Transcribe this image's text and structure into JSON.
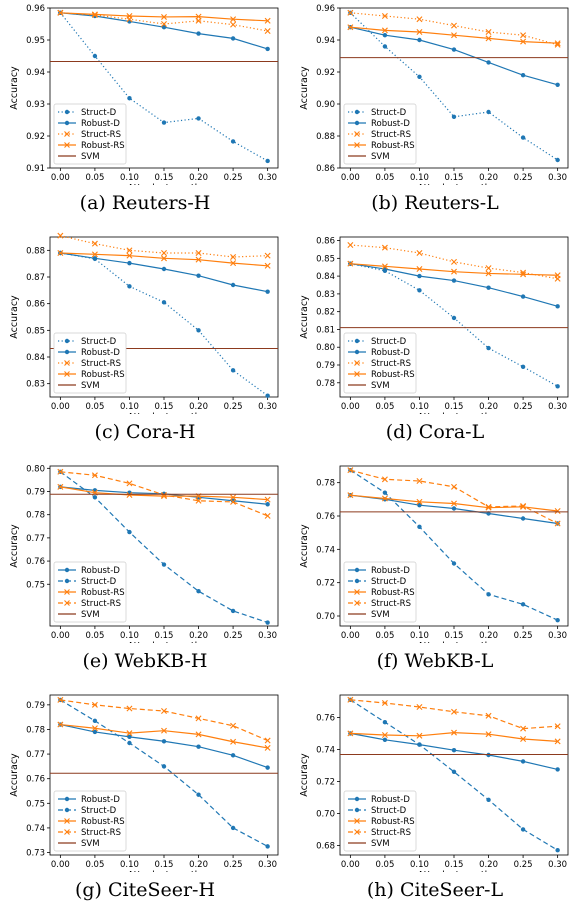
{
  "colors": {
    "blue": "#1f77b4",
    "orange": "#ff7f0e",
    "svm": "#8c3a1e"
  },
  "charts": [
    {
      "type": "line",
      "caption": "(a) Reuters-H",
      "xlabel": "Attack strength",
      "ylabel": "Accuracy",
      "x": [
        0.0,
        0.05,
        0.1,
        0.15,
        0.2,
        0.25,
        0.3
      ],
      "xticks": [
        "0.00",
        "0.05",
        "0.10",
        "0.15",
        "0.20",
        "0.25",
        "0.30"
      ],
      "ylim": [
        0.91,
        0.96
      ],
      "yticks": [
        0.91,
        0.92,
        0.93,
        0.94,
        0.95,
        0.96
      ],
      "ytick_labels": [
        "0.91",
        "0.92",
        "0.93",
        "0.94",
        "0.95",
        "0.96"
      ],
      "legend": "bottom-left",
      "series": [
        {
          "name": "Struct-D",
          "color": "blue",
          "style": "dotted",
          "marker": "dot",
          "values": [
            0.9585,
            0.945,
            0.9318,
            0.9242,
            0.9255,
            0.9183,
            0.9122
          ]
        },
        {
          "name": "Robust-D",
          "color": "blue",
          "style": "solid",
          "marker": "dot",
          "values": [
            0.9585,
            0.9575,
            0.9558,
            0.954,
            0.952,
            0.9505,
            0.9472
          ]
        },
        {
          "name": "Struct-RS",
          "color": "orange",
          "style": "dotted",
          "marker": "x",
          "values": [
            0.9585,
            0.9578,
            0.9565,
            0.955,
            0.956,
            0.9548,
            0.9528
          ]
        },
        {
          "name": "Robust-RS",
          "color": "orange",
          "style": "solid",
          "marker": "x",
          "values": [
            0.9585,
            0.958,
            0.9575,
            0.9572,
            0.9573,
            0.9565,
            0.956
          ]
        },
        {
          "name": "SVM",
          "color": "svm",
          "style": "solid",
          "marker": "none",
          "hline": 0.9433
        }
      ]
    },
    {
      "type": "line",
      "caption": "(b) Reuters-L",
      "xlabel": "Attack strength",
      "ylabel": "Accuracy",
      "x": [
        0.0,
        0.05,
        0.1,
        0.15,
        0.2,
        0.25,
        0.3
      ],
      "xticks": [
        "0.00",
        "0.05",
        "0.10",
        "0.15",
        "0.20",
        "0.25",
        "0.30"
      ],
      "ylim": [
        0.86,
        0.96
      ],
      "yticks": [
        0.86,
        0.88,
        0.9,
        0.92,
        0.94,
        0.96
      ],
      "ytick_labels": [
        "0.86",
        "0.88",
        "0.90",
        "0.92",
        "0.94",
        "0.96"
      ],
      "legend": "bottom-left",
      "series": [
        {
          "name": "Struct-D",
          "color": "blue",
          "style": "dotted",
          "marker": "dot",
          "values": [
            0.957,
            0.936,
            0.917,
            0.892,
            0.895,
            0.879,
            0.865
          ]
        },
        {
          "name": "Robust-D",
          "color": "blue",
          "style": "solid",
          "marker": "dot",
          "values": [
            0.948,
            0.943,
            0.94,
            0.934,
            0.926,
            0.918,
            0.912
          ]
        },
        {
          "name": "Struct-RS",
          "color": "orange",
          "style": "dotted",
          "marker": "x",
          "values": [
            0.957,
            0.955,
            0.953,
            0.949,
            0.945,
            0.943,
            0.937
          ]
        },
        {
          "name": "Robust-RS",
          "color": "orange",
          "style": "solid",
          "marker": "x",
          "values": [
            0.948,
            0.946,
            0.945,
            0.943,
            0.941,
            0.939,
            0.938
          ]
        },
        {
          "name": "SVM",
          "color": "svm",
          "style": "solid",
          "marker": "none",
          "hline": 0.929
        }
      ]
    },
    {
      "type": "line",
      "caption": "(c) Cora-H",
      "xlabel": "Attack strength",
      "ylabel": "Accuracy",
      "x": [
        0.0,
        0.05,
        0.1,
        0.15,
        0.2,
        0.25,
        0.3
      ],
      "xticks": [
        "0.00",
        "0.05",
        "0.10",
        "0.15",
        "0.20",
        "0.25",
        "0.30"
      ],
      "ylim": [
        0.825,
        0.885
      ],
      "yticks": [
        0.83,
        0.84,
        0.85,
        0.86,
        0.87,
        0.88
      ],
      "ytick_labels": [
        "0.83",
        "0.84",
        "0.85",
        "0.86",
        "0.87",
        "0.88"
      ],
      "legend": "bottom-left",
      "series": [
        {
          "name": "Struct-D",
          "color": "blue",
          "style": "dotted",
          "marker": "dot",
          "values": [
            0.879,
            0.8768,
            0.8665,
            0.8605,
            0.85,
            0.835,
            0.8255
          ]
        },
        {
          "name": "Robust-D",
          "color": "blue",
          "style": "solid",
          "marker": "dot",
          "values": [
            0.879,
            0.877,
            0.8752,
            0.873,
            0.8705,
            0.867,
            0.8645
          ]
        },
        {
          "name": "Struct-RS",
          "color": "orange",
          "style": "dotted",
          "marker": "x",
          "values": [
            0.8855,
            0.8825,
            0.88,
            0.879,
            0.879,
            0.8775,
            0.878
          ]
        },
        {
          "name": "Robust-RS",
          "color": "orange",
          "style": "solid",
          "marker": "x",
          "values": [
            0.879,
            0.8785,
            0.878,
            0.877,
            0.8765,
            0.8752,
            0.8742
          ]
        },
        {
          "name": "SVM",
          "color": "svm",
          "style": "solid",
          "marker": "none",
          "hline": 0.8432
        }
      ]
    },
    {
      "type": "line",
      "caption": "(d) Cora-L",
      "xlabel": "Attack strength",
      "ylabel": "Accuracy",
      "x": [
        0.0,
        0.05,
        0.1,
        0.15,
        0.2,
        0.25,
        0.3
      ],
      "xticks": [
        "0.00",
        "0.05",
        "0.10",
        "0.15",
        "0.20",
        "0.25",
        "0.30"
      ],
      "ylim": [
        0.772,
        0.862
      ],
      "yticks": [
        0.78,
        0.79,
        0.8,
        0.81,
        0.82,
        0.83,
        0.84,
        0.85,
        0.86
      ],
      "ytick_labels": [
        "0.78",
        "0.79",
        "0.80",
        "0.81",
        "0.82",
        "0.83",
        "0.84",
        "0.85",
        "0.86"
      ],
      "legend": "bottom-left",
      "series": [
        {
          "name": "Struct-D",
          "color": "blue",
          "style": "dotted",
          "marker": "dot",
          "values": [
            0.847,
            0.843,
            0.832,
            0.8165,
            0.7995,
            0.789,
            0.778
          ]
        },
        {
          "name": "Robust-D",
          "color": "blue",
          "style": "solid",
          "marker": "dot",
          "values": [
            0.847,
            0.844,
            0.84,
            0.8375,
            0.8335,
            0.8285,
            0.823
          ]
        },
        {
          "name": "Struct-RS",
          "color": "orange",
          "style": "dotted",
          "marker": "x",
          "values": [
            0.8575,
            0.856,
            0.853,
            0.848,
            0.8445,
            0.842,
            0.8385
          ]
        },
        {
          "name": "Robust-RS",
          "color": "orange",
          "style": "solid",
          "marker": "x",
          "values": [
            0.847,
            0.8455,
            0.844,
            0.8425,
            0.8415,
            0.841,
            0.8405
          ]
        },
        {
          "name": "SVM",
          "color": "svm",
          "style": "solid",
          "marker": "none",
          "hline": 0.811
        }
      ]
    },
    {
      "type": "line",
      "caption": "(e) WebKB-H",
      "xlabel": "Attack strength",
      "ylabel": "Accuracy",
      "x": [
        0.0,
        0.05,
        0.1,
        0.15,
        0.2,
        0.25,
        0.3
      ],
      "xticks": [
        "0.00",
        "0.05",
        "0.10",
        "0.15",
        "0.20",
        "0.25",
        "0.30"
      ],
      "ylim": [
        0.732,
        0.801
      ],
      "yticks": [
        0.75,
        0.76,
        0.77,
        0.78,
        0.79,
        0.8
      ],
      "ytick_labels": [
        "0.75",
        "0.76",
        "0.77",
        "0.78",
        "0.79",
        "0.80"
      ],
      "legend": "bottom-left",
      "series": [
        {
          "name": "Robust-D",
          "color": "blue",
          "style": "solid",
          "marker": "dot",
          "values": [
            0.792,
            0.7905,
            0.7895,
            0.789,
            0.7875,
            0.786,
            0.7845
          ]
        },
        {
          "name": "Struct-D",
          "color": "blue",
          "style": "dashed",
          "marker": "dot",
          "values": [
            0.7985,
            0.7875,
            0.7725,
            0.7585,
            0.747,
            0.7385,
            0.7335
          ]
        },
        {
          "name": "Robust-RS",
          "color": "orange",
          "style": "solid",
          "marker": "x",
          "values": [
            0.792,
            0.7895,
            0.7885,
            0.788,
            0.788,
            0.7875,
            0.7865
          ]
        },
        {
          "name": "Struct-RS",
          "color": "orange",
          "style": "dashed",
          "marker": "x",
          "values": [
            0.7985,
            0.797,
            0.7935,
            0.7885,
            0.786,
            0.7855,
            0.7795
          ]
        },
        {
          "name": "SVM",
          "color": "svm",
          "style": "solid",
          "marker": "none",
          "hline": 0.7888
        }
      ]
    },
    {
      "type": "line",
      "caption": "(f) WebKB-L",
      "xlabel": "Attack strength",
      "ylabel": "Accuracy",
      "x": [
        0.0,
        0.05,
        0.1,
        0.15,
        0.2,
        0.25,
        0.3
      ],
      "xticks": [
        "0.00",
        "0.05",
        "0.10",
        "0.15",
        "0.20",
        "0.25",
        "0.30"
      ],
      "ylim": [
        0.694,
        0.79
      ],
      "yticks": [
        0.7,
        0.72,
        0.74,
        0.76,
        0.78
      ],
      "ytick_labels": [
        "0.70",
        "0.72",
        "0.74",
        "0.76",
        "0.78"
      ],
      "legend": "bottom-left",
      "series": [
        {
          "name": "Robust-D",
          "color": "blue",
          "style": "solid",
          "marker": "dot",
          "values": [
            0.7725,
            0.77,
            0.7665,
            0.7645,
            0.7615,
            0.7585,
            0.7555
          ]
        },
        {
          "name": "Struct-D",
          "color": "blue",
          "style": "dashed",
          "marker": "dot",
          "values": [
            0.7875,
            0.774,
            0.7535,
            0.7315,
            0.713,
            0.707,
            0.6975
          ]
        },
        {
          "name": "Robust-RS",
          "color": "orange",
          "style": "solid",
          "marker": "x",
          "values": [
            0.7725,
            0.7705,
            0.7685,
            0.7675,
            0.765,
            0.7655,
            0.763
          ]
        },
        {
          "name": "Struct-RS",
          "color": "orange",
          "style": "dashed",
          "marker": "x",
          "values": [
            0.7875,
            0.782,
            0.781,
            0.7775,
            0.7655,
            0.766,
            0.7555
          ]
        },
        {
          "name": "SVM",
          "color": "svm",
          "style": "solid",
          "marker": "none",
          "hline": 0.7625
        }
      ]
    },
    {
      "type": "line",
      "caption": "(g) CiteSeer-H",
      "xlabel": "Attack strength",
      "ylabel": "Accuracy",
      "x": [
        0.0,
        0.05,
        0.1,
        0.15,
        0.2,
        0.25,
        0.3
      ],
      "xticks": [
        "0.00",
        "0.05",
        "0.10",
        "0.15",
        "0.20",
        "0.25",
        "0.30"
      ],
      "ylim": [
        0.729,
        0.794
      ],
      "yticks": [
        0.73,
        0.74,
        0.75,
        0.76,
        0.77,
        0.78,
        0.79
      ],
      "ytick_labels": [
        "0.73",
        "0.74",
        "0.75",
        "0.76",
        "0.77",
        "0.78",
        "0.79"
      ],
      "legend": "bottom-left",
      "series": [
        {
          "name": "Robust-D",
          "color": "blue",
          "style": "solid",
          "marker": "dot",
          "values": [
            0.782,
            0.779,
            0.777,
            0.7752,
            0.773,
            0.7695,
            0.7645
          ]
        },
        {
          "name": "Struct-D",
          "color": "blue",
          "style": "dashed",
          "marker": "dot",
          "values": [
            0.792,
            0.7835,
            0.7745,
            0.765,
            0.7535,
            0.74,
            0.7325
          ]
        },
        {
          "name": "Robust-RS",
          "color": "orange",
          "style": "solid",
          "marker": "x",
          "values": [
            0.782,
            0.7805,
            0.7785,
            0.7795,
            0.778,
            0.775,
            0.7725
          ]
        },
        {
          "name": "Struct-RS",
          "color": "orange",
          "style": "dashed",
          "marker": "x",
          "values": [
            0.792,
            0.79,
            0.7885,
            0.7875,
            0.7845,
            0.7815,
            0.7755
          ]
        },
        {
          "name": "SVM",
          "color": "svm",
          "style": "solid",
          "marker": "none",
          "hline": 0.7622
        }
      ]
    },
    {
      "type": "line",
      "caption": "(h) CiteSeer-L",
      "xlabel": "Attack strength",
      "ylabel": "Accuracy",
      "x": [
        0.0,
        0.05,
        0.1,
        0.15,
        0.2,
        0.25,
        0.3
      ],
      "xticks": [
        "0.00",
        "0.05",
        "0.10",
        "0.15",
        "0.20",
        "0.25",
        "0.30"
      ],
      "ylim": [
        0.674,
        0.774
      ],
      "yticks": [
        0.68,
        0.7,
        0.72,
        0.74,
        0.76
      ],
      "ytick_labels": [
        "0.68",
        "0.70",
        "0.72",
        "0.74",
        "0.76"
      ],
      "legend": "bottom-left",
      "series": [
        {
          "name": "Robust-D",
          "color": "blue",
          "style": "solid",
          "marker": "dot",
          "values": [
            0.75,
            0.746,
            0.743,
            0.7395,
            0.7365,
            0.7325,
            0.7275
          ]
        },
        {
          "name": "Struct-D",
          "color": "blue",
          "style": "dashed",
          "marker": "dot",
          "values": [
            0.771,
            0.757,
            0.743,
            0.726,
            0.7085,
            0.69,
            0.677
          ]
        },
        {
          "name": "Robust-RS",
          "color": "orange",
          "style": "solid",
          "marker": "x",
          "values": [
            0.75,
            0.749,
            0.7485,
            0.7505,
            0.7495,
            0.7465,
            0.745
          ]
        },
        {
          "name": "Struct-RS",
          "color": "orange",
          "style": "dashed",
          "marker": "x",
          "values": [
            0.771,
            0.769,
            0.7665,
            0.7635,
            0.761,
            0.753,
            0.7545
          ]
        },
        {
          "name": "SVM",
          "color": "svm",
          "style": "solid",
          "marker": "none",
          "hline": 0.7368
        }
      ]
    }
  ]
}
